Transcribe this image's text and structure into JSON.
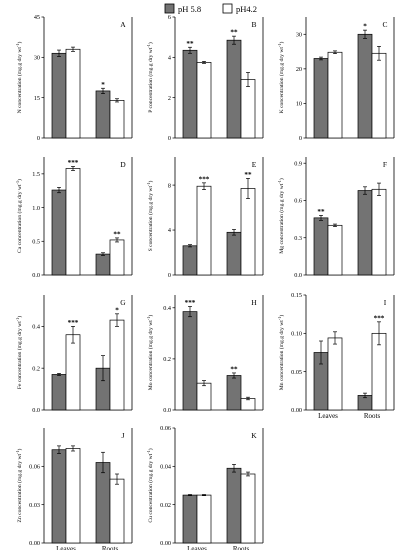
{
  "legend": {
    "items": [
      {
        "label": "pH 5.8",
        "color": "#737373"
      },
      {
        "label": "pH4.2",
        "color": "#ffffff"
      }
    ]
  },
  "categories": [
    "Leaves",
    "Roots"
  ],
  "chart_data": [
    {
      "type": "bar",
      "panel": "A",
      "ylabel": "N concentration (mg.g dry wt",
      "ylim": [
        0,
        45
      ],
      "ticks": [
        "0",
        "15",
        "30",
        "45"
      ],
      "tick_values": [
        0,
        15,
        30,
        45
      ],
      "categories": [
        "Leaves",
        "Roots"
      ],
      "series": [
        {
          "name": "pH 5.8",
          "values": [
            31.5,
            17.5
          ],
          "errors": [
            1.2,
            1.0
          ]
        },
        {
          "name": "pH4.2",
          "values": [
            33.0,
            14.0
          ],
          "errors": [
            0.8,
            0.6
          ]
        }
      ],
      "stars": [
        [
          "",
          ""
        ],
        [
          "*",
          ""
        ]
      ]
    },
    {
      "type": "bar",
      "panel": "B",
      "ylabel": "P concentration (mg.g dry wt",
      "ylim": [
        0,
        6
      ],
      "ticks": [
        "0",
        "2",
        "4",
        "6"
      ],
      "tick_values": [
        0,
        2,
        4,
        6
      ],
      "categories": [
        "Leaves",
        "Roots"
      ],
      "series": [
        {
          "name": "pH 5.8",
          "values": [
            4.35,
            4.85
          ],
          "errors": [
            0.15,
            0.2
          ]
        },
        {
          "name": "pH4.2",
          "values": [
            3.75,
            2.9
          ],
          "errors": [
            0.05,
            0.35
          ]
        }
      ],
      "stars": [
        [
          "**",
          ""
        ],
        [
          "**",
          ""
        ]
      ]
    },
    {
      "type": "bar",
      "panel": "C",
      "ylabel": "K concentration (mg.g dry wt",
      "ylim": [
        0,
        35
      ],
      "ticks": [
        "0",
        "10",
        "20",
        "30"
      ],
      "tick_values": [
        0,
        10,
        20,
        30
      ],
      "categories": [
        "Leaves",
        "Roots"
      ],
      "series": [
        {
          "name": "pH 5.8",
          "values": [
            23.0,
            30.0
          ],
          "errors": [
            0.4,
            1.2
          ]
        },
        {
          "name": "pH4.2",
          "values": [
            24.8,
            24.5
          ],
          "errors": [
            0.4,
            2.0
          ]
        }
      ],
      "stars": [
        [
          "",
          ""
        ],
        [
          "*",
          ""
        ]
      ]
    },
    {
      "type": "bar",
      "panel": "D",
      "ylabel": "Ca concentration (mg.g dry wt",
      "ylim": [
        0,
        1.75
      ],
      "ticks": [
        "0.0",
        "0.5",
        "1.0",
        "1.5"
      ],
      "tick_values": [
        0,
        0.5,
        1.0,
        1.5
      ],
      "categories": [
        "Leaves",
        "Roots"
      ],
      "series": [
        {
          "name": "pH 5.8",
          "values": [
            1.26,
            0.31
          ],
          "errors": [
            0.04,
            0.02
          ]
        },
        {
          "name": "pH4.2",
          "values": [
            1.58,
            0.52
          ],
          "errors": [
            0.03,
            0.03
          ]
        }
      ],
      "stars": [
        [
          "",
          "***"
        ],
        [
          "",
          "**"
        ]
      ]
    },
    {
      "type": "bar",
      "panel": "E",
      "ylabel": "S concentration (mg.g dry wt",
      "ylim": [
        0,
        10.5
      ],
      "ticks": [
        "0",
        "4",
        "8"
      ],
      "tick_values": [
        0,
        4,
        8
      ],
      "categories": [
        "Leaves",
        "Roots"
      ],
      "series": [
        {
          "name": "pH 5.8",
          "values": [
            2.6,
            3.8
          ],
          "errors": [
            0.1,
            0.25
          ]
        },
        {
          "name": "pH4.2",
          "values": [
            7.9,
            7.7
          ],
          "errors": [
            0.3,
            0.9
          ]
        }
      ],
      "stars": [
        [
          "",
          "***"
        ],
        [
          "",
          "**"
        ]
      ]
    },
    {
      "type": "bar",
      "panel": "F",
      "ylabel": "Mg concentration (mg.g dry wt",
      "ylim": [
        0,
        0.95
      ],
      "ticks": [
        "0.0",
        "0.3",
        "0.6",
        "0.9"
      ],
      "tick_values": [
        0,
        0.3,
        0.6,
        0.9
      ],
      "categories": [
        "Leaves",
        "Roots"
      ],
      "series": [
        {
          "name": "pH 5.8",
          "values": [
            0.46,
            0.68
          ],
          "errors": [
            0.02,
            0.03
          ]
        },
        {
          "name": "pH4.2",
          "values": [
            0.4,
            0.69
          ],
          "errors": [
            0.01,
            0.05
          ]
        }
      ],
      "stars": [
        [
          "**",
          ""
        ],
        [
          "",
          ""
        ]
      ]
    },
    {
      "type": "bar",
      "panel": "G",
      "ylabel": "Fe concentration (mg.g dry wt",
      "ylim": [
        0,
        0.55
      ],
      "ticks": [
        "0.0",
        "0.2",
        "0.4"
      ],
      "tick_values": [
        0,
        0.2,
        0.4
      ],
      "categories": [
        "Leaves",
        "Roots"
      ],
      "series": [
        {
          "name": "pH 5.8",
          "values": [
            0.17,
            0.2
          ],
          "errors": [
            0.005,
            0.06
          ]
        },
        {
          "name": "pH4.2",
          "values": [
            0.36,
            0.43
          ],
          "errors": [
            0.04,
            0.03
          ]
        }
      ],
      "stars": [
        [
          "",
          "***"
        ],
        [
          "",
          "*"
        ]
      ]
    },
    {
      "type": "bar",
      "panel": "H",
      "ylabel": "Mo concentration (mg.g dry wt",
      "ylim": [
        0,
        0.45
      ],
      "ticks": [
        "0.0",
        "0.2",
        "0.4"
      ],
      "tick_values": [
        0,
        0.2,
        0.4
      ],
      "categories": [
        "Leaves",
        "Roots"
      ],
      "series": [
        {
          "name": "pH 5.8",
          "values": [
            0.385,
            0.135
          ],
          "errors": [
            0.02,
            0.01
          ]
        },
        {
          "name": "pH4.2",
          "values": [
            0.105,
            0.045
          ],
          "errors": [
            0.01,
            0.005
          ]
        }
      ],
      "stars": [
        [
          "***",
          ""
        ],
        [
          "**",
          ""
        ]
      ]
    },
    {
      "type": "bar",
      "panel": "I",
      "ylabel": "Mn concentration (mg.g dry wt",
      "ylim": [
        0,
        0.15
      ],
      "ticks": [
        "0.00",
        "0.05",
        "0.10",
        "0.15"
      ],
      "tick_values": [
        0,
        0.05,
        0.1,
        0.15
      ],
      "categories": [
        "Leaves",
        "Roots"
      ],
      "series": [
        {
          "name": "pH 5.8",
          "values": [
            0.075,
            0.019
          ],
          "errors": [
            0.015,
            0.003
          ]
        },
        {
          "name": "pH4.2",
          "values": [
            0.094,
            0.1
          ],
          "errors": [
            0.008,
            0.015
          ]
        }
      ],
      "stars": [
        [
          "",
          ""
        ],
        [
          "",
          "***"
        ]
      ]
    },
    {
      "type": "bar",
      "panel": "J",
      "ylabel": "Zn concentration (mg.g dry wt",
      "ylim": [
        0,
        0.09
      ],
      "ticks": [
        "0.00",
        "0.03",
        "0.06"
      ],
      "tick_values": [
        0,
        0.03,
        0.06
      ],
      "categories": [
        "Leaves",
        "Roots"
      ],
      "series": [
        {
          "name": "pH 5.8",
          "values": [
            0.073,
            0.063
          ],
          "errors": [
            0.003,
            0.008
          ]
        },
        {
          "name": "pH4.2",
          "values": [
            0.074,
            0.05
          ],
          "errors": [
            0.002,
            0.004
          ]
        }
      ],
      "stars": [
        [
          "",
          ""
        ],
        [
          "",
          ""
        ]
      ]
    },
    {
      "type": "bar",
      "panel": "K",
      "ylabel": "Cu concentration (mg.g dry wt",
      "ylim": [
        0,
        0.06
      ],
      "ticks": [
        "0.00",
        "0.02",
        "0.04",
        "0.06"
      ],
      "tick_values": [
        0,
        0.02,
        0.04,
        0.06
      ],
      "categories": [
        "Leaves",
        "Roots"
      ],
      "series": [
        {
          "name": "pH 5.8",
          "values": [
            0.025,
            0.039
          ],
          "errors": [
            0.0003,
            0.002
          ]
        },
        {
          "name": "pH4.2",
          "values": [
            0.025,
            0.036
          ],
          "errors": [
            0.0003,
            0.001
          ]
        }
      ],
      "stars": [
        [
          "",
          ""
        ],
        [
          "",
          ""
        ]
      ]
    }
  ]
}
